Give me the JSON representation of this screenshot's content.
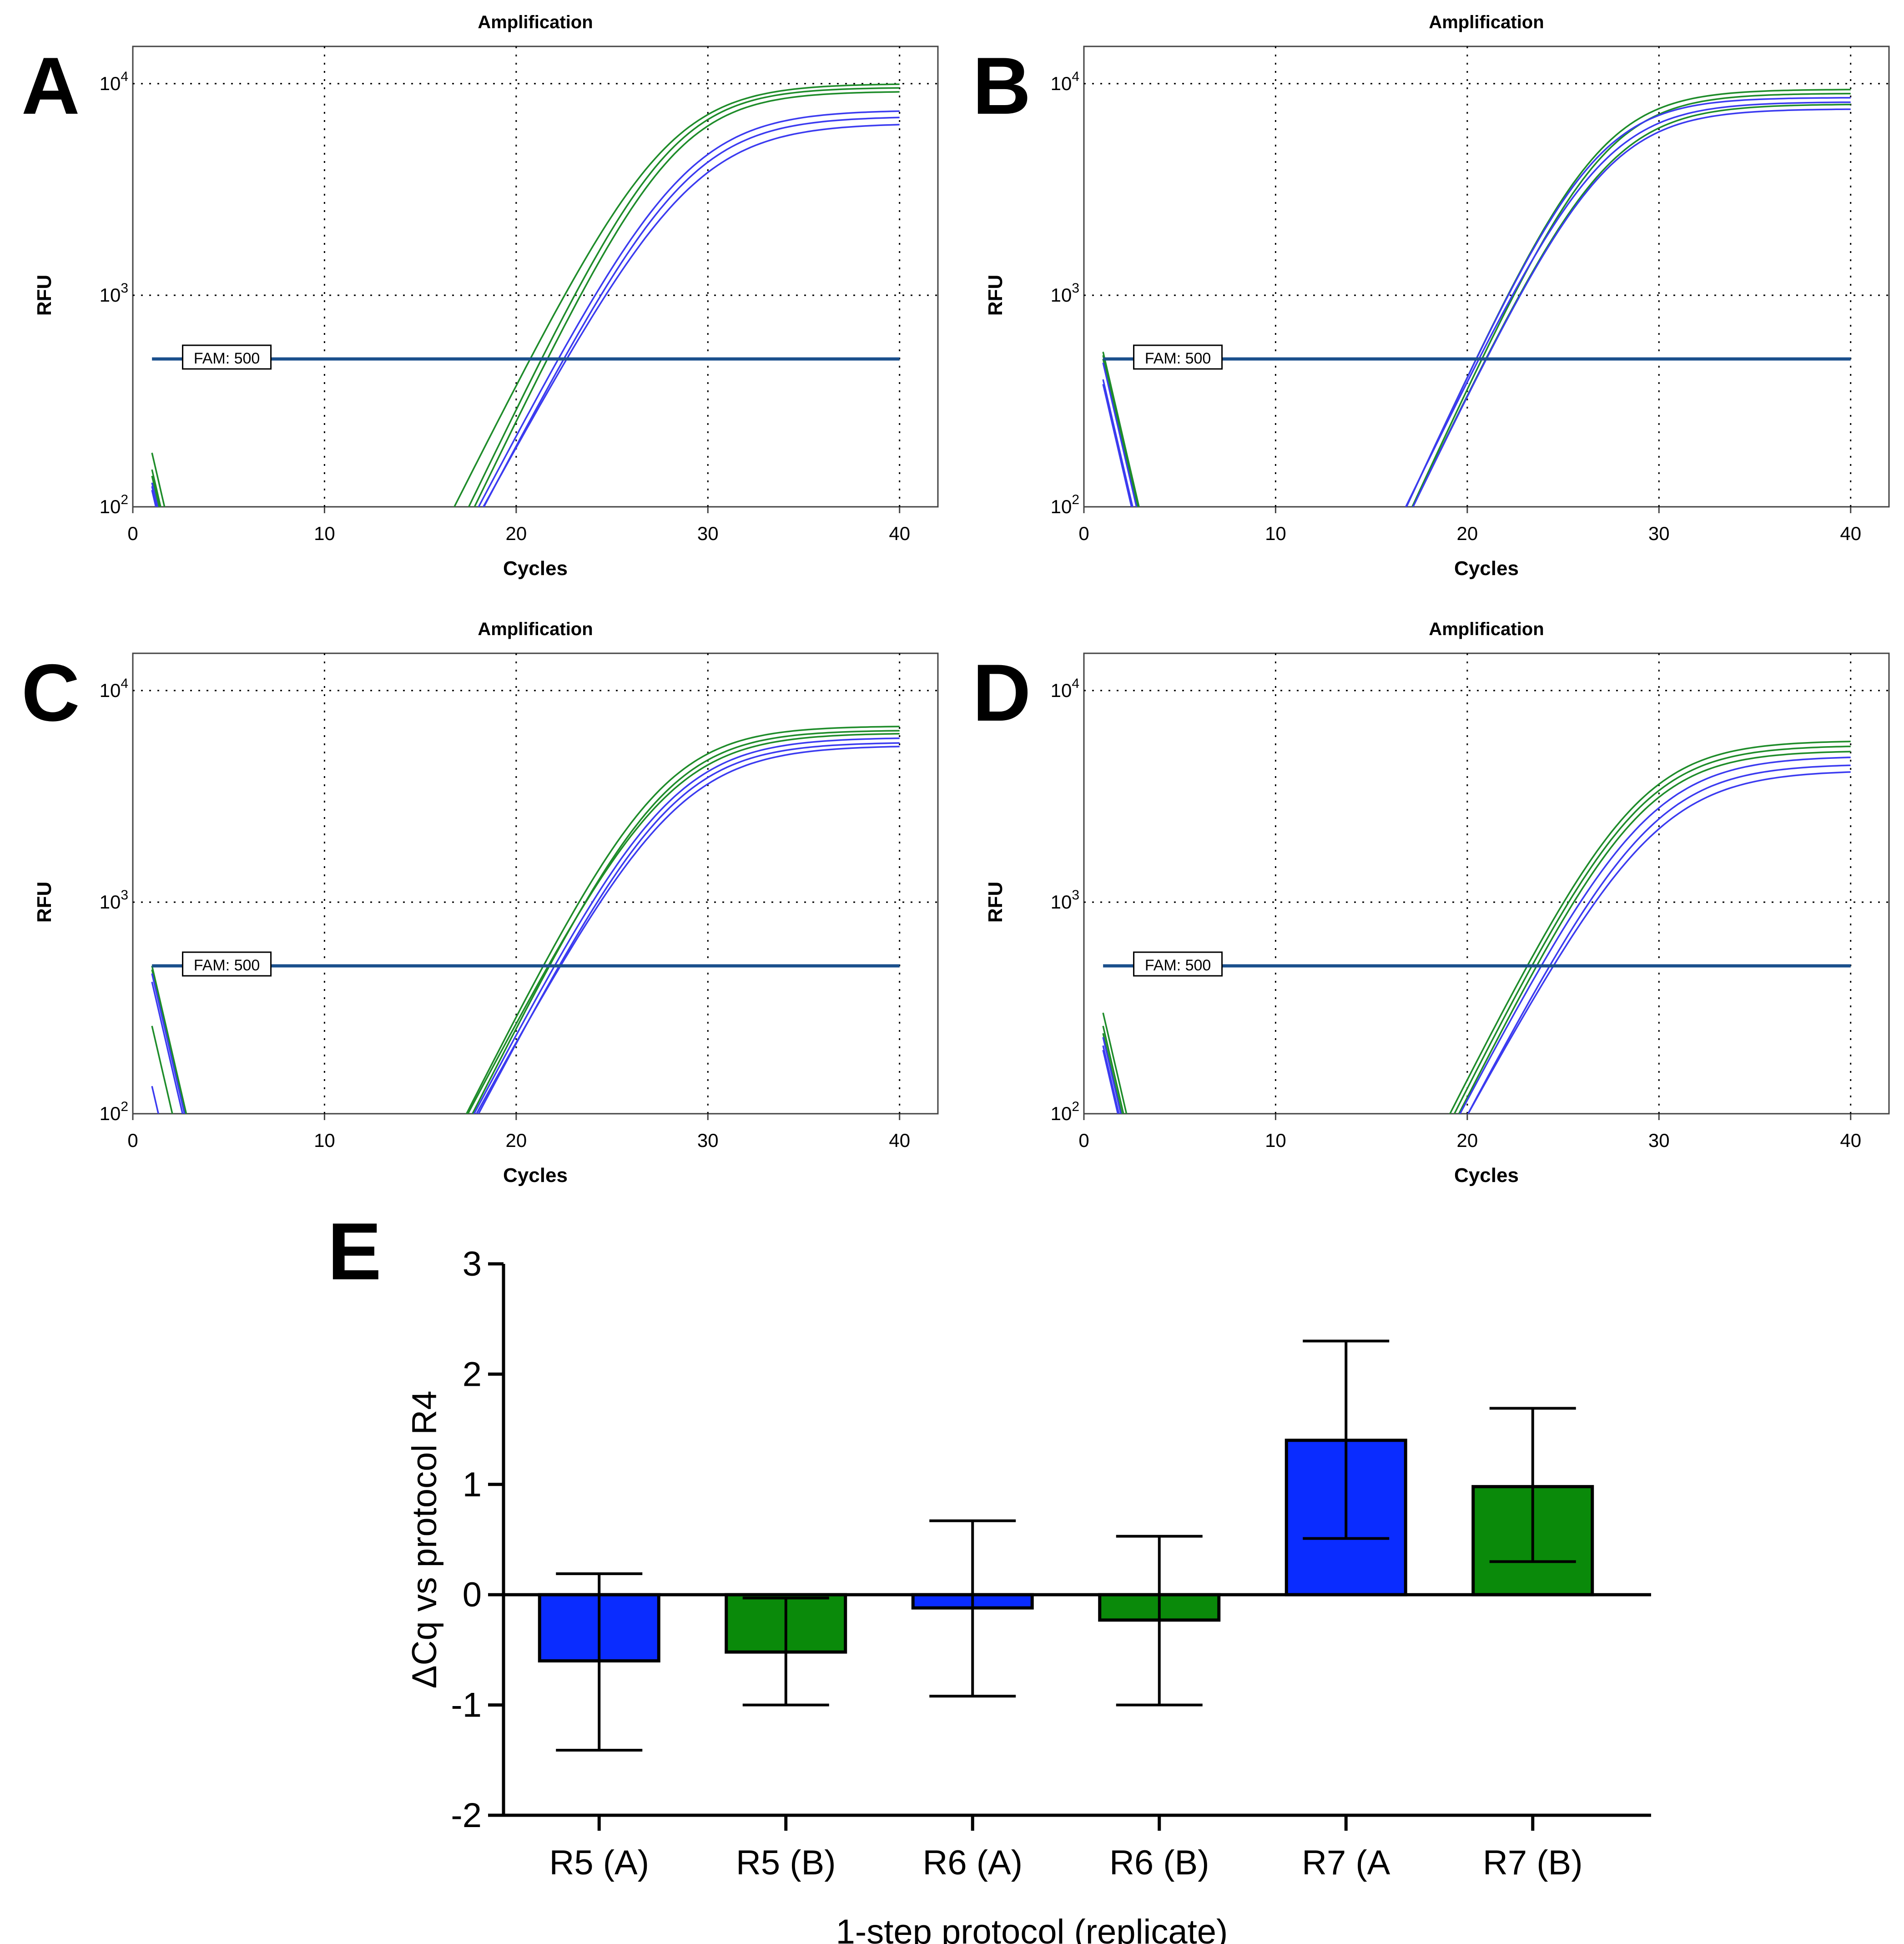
{
  "colors": {
    "blue_series": "#3b3bf0",
    "green_series": "#1e8c2a",
    "threshold": "#1a4f8c",
    "bar_blue": "#0a2cff",
    "bar_green": "#0a8a0a",
    "grid": "#000000",
    "text": "#000000"
  },
  "chart_data": [
    {
      "panel": "A",
      "type": "line",
      "title": "Amplification",
      "xlabel": "Cycles",
      "ylabel": "RFU",
      "xlim": [
        0,
        42
      ],
      "ylim": [
        100,
        15000
      ],
      "yscale": "log",
      "x_ticks": [
        "0",
        "10",
        "20",
        "30",
        "40"
      ],
      "y_tick_values": [
        100,
        1000,
        10000
      ],
      "y_tick_labels": [
        {
          "base": "10",
          "exp": "2"
        },
        {
          "base": "10",
          "exp": "3"
        },
        {
          "base": "10",
          "exp": "4"
        }
      ],
      "grid": true,
      "threshold": {
        "label": "FAM: 500",
        "value": 500
      },
      "series": [
        {
          "color": "green",
          "plateau": 10000,
          "x_half": 27.8,
          "slope": 2.4,
          "start": 180
        },
        {
          "color": "green",
          "plateau": 9600,
          "x_half": 28.0,
          "slope": 2.3,
          "start": 150
        },
        {
          "color": "green",
          "plateau": 9200,
          "x_half": 28.2,
          "slope": 2.3,
          "start": 140
        },
        {
          "color": "blue",
          "plateau": 7500,
          "x_half": 28.8,
          "slope": 2.5,
          "start": 130
        },
        {
          "color": "blue",
          "plateau": 7000,
          "x_half": 28.9,
          "slope": 2.5,
          "start": 125
        },
        {
          "color": "blue",
          "plateau": 6500,
          "x_half": 29.1,
          "slope": 2.6,
          "start": 120
        }
      ]
    },
    {
      "panel": "B",
      "type": "line",
      "title": "Amplification",
      "xlabel": "Cycles",
      "ylabel": "RFU",
      "xlim": [
        0,
        42
      ],
      "ylim": [
        100,
        15000
      ],
      "yscale": "log",
      "x_ticks": [
        "0",
        "10",
        "20",
        "30",
        "40"
      ],
      "y_tick_values": [
        100,
        1000,
        10000
      ],
      "y_tick_labels": [
        {
          "base": "10",
          "exp": "2"
        },
        {
          "base": "10",
          "exp": "3"
        },
        {
          "base": "10",
          "exp": "4"
        }
      ],
      "grid": true,
      "threshold": {
        "label": "FAM: 500",
        "value": 500
      },
      "series": [
        {
          "color": "green",
          "plateau": 9400,
          "x_half": 26.8,
          "slope": 2.2,
          "start": 540
        },
        {
          "color": "green",
          "plateau": 9000,
          "x_half": 27.0,
          "slope": 2.2,
          "start": 520
        },
        {
          "color": "green",
          "plateau": 8000,
          "x_half": 27.2,
          "slope": 2.3,
          "start": 500
        },
        {
          "color": "blue",
          "plateau": 8600,
          "x_half": 26.6,
          "slope": 2.2,
          "start": 480
        },
        {
          "color": "blue",
          "plateau": 8200,
          "x_half": 26.9,
          "slope": 2.3,
          "start": 400
        },
        {
          "color": "blue",
          "plateau": 7600,
          "x_half": 27.1,
          "slope": 2.3,
          "start": 380
        }
      ]
    },
    {
      "panel": "C",
      "type": "line",
      "title": "Amplification",
      "xlabel": "Cycles",
      "ylabel": "RFU",
      "xlim": [
        0,
        42
      ],
      "ylim": [
        100,
        15000
      ],
      "yscale": "log",
      "x_ticks": [
        "0",
        "10",
        "20",
        "30",
        "40"
      ],
      "y_tick_values": [
        100,
        1000,
        10000
      ],
      "y_tick_labels": [
        {
          "base": "10",
          "exp": "2"
        },
        {
          "base": "10",
          "exp": "3"
        },
        {
          "base": "10",
          "exp": "4"
        }
      ],
      "grid": true,
      "threshold": {
        "label": "FAM: 500",
        "value": 500
      },
      "series": [
        {
          "color": "green",
          "plateau": 6800,
          "x_half": 27.5,
          "slope": 2.4,
          "start": 500
        },
        {
          "color": "green",
          "plateau": 6500,
          "x_half": 27.7,
          "slope": 2.4,
          "start": 260
        },
        {
          "color": "green",
          "plateau": 6300,
          "x_half": 27.8,
          "slope": 2.5,
          "start": 480
        },
        {
          "color": "blue",
          "plateau": 6000,
          "x_half": 28.0,
          "slope": 2.5,
          "start": 460
        },
        {
          "color": "blue",
          "plateau": 5700,
          "x_half": 28.1,
          "slope": 2.5,
          "start": 135
        },
        {
          "color": "blue",
          "plateau": 5500,
          "x_half": 28.3,
          "slope": 2.6,
          "start": 420
        }
      ]
    },
    {
      "panel": "D",
      "type": "line",
      "title": "Amplification",
      "xlabel": "Cycles",
      "ylabel": "RFU",
      "xlim": [
        0,
        42
      ],
      "ylim": [
        100,
        15000
      ],
      "yscale": "log",
      "x_ticks": [
        "0",
        "10",
        "20",
        "30",
        "40"
      ],
      "y_tick_values": [
        100,
        1000,
        10000
      ],
      "y_tick_labels": [
        {
          "base": "10",
          "exp": "2"
        },
        {
          "base": "10",
          "exp": "3"
        },
        {
          "base": "10",
          "exp": "4"
        }
      ],
      "grid": true,
      "threshold": {
        "label": "FAM: 500",
        "value": 500
      },
      "series": [
        {
          "color": "green",
          "plateau": 5800,
          "x_half": 28.8,
          "slope": 2.4,
          "start": 300
        },
        {
          "color": "green",
          "plateau": 5500,
          "x_half": 28.9,
          "slope": 2.4,
          "start": 260
        },
        {
          "color": "green",
          "plateau": 5200,
          "x_half": 29.0,
          "slope": 2.4,
          "start": 240
        },
        {
          "color": "blue",
          "plateau": 4900,
          "x_half": 29.3,
          "slope": 2.5,
          "start": 230
        },
        {
          "color": "blue",
          "plateau": 4500,
          "x_half": 29.5,
          "slope": 2.5,
          "start": 210
        },
        {
          "color": "blue",
          "plateau": 4200,
          "x_half": 29.7,
          "slope": 2.6,
          "start": 200
        }
      ]
    },
    {
      "panel": "E",
      "type": "bar",
      "xlabel": "1-step protocol (replicate)",
      "ylabel": "ΔCq vs protocol R4",
      "ylim": [
        -2,
        3
      ],
      "y_ticks": [
        "-2",
        "-1",
        "0",
        "1",
        "2",
        "3"
      ],
      "y_tick_values": [
        -2,
        -1,
        0,
        1,
        2,
        3
      ],
      "categories": [
        "R5 (A)",
        "R5 (B)",
        "R6 (A)",
        "R6 (B)",
        "R7 (A",
        "R7 (B)"
      ],
      "bar_colors": [
        "blue",
        "green",
        "blue",
        "green",
        "blue",
        "green"
      ],
      "values": [
        -0.6,
        -0.52,
        -0.12,
        -0.23,
        1.4,
        0.98
      ],
      "error_low": [
        -1.41,
        -1.0,
        -0.92,
        -1.0,
        0.51,
        0.3
      ],
      "error_high": [
        0.19,
        -0.03,
        0.67,
        0.53,
        2.3,
        1.69
      ]
    }
  ]
}
